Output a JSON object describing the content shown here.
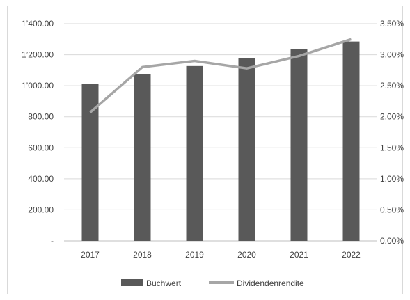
{
  "chart_data": {
    "type": "bar",
    "categories": [
      "2017",
      "2018",
      "2019",
      "2020",
      "2021",
      "2022"
    ],
    "series": [
      {
        "name": "Buchwert",
        "type": "bar",
        "axis": "left",
        "values": [
          1013,
          1074,
          1127,
          1179,
          1238,
          1285
        ],
        "color": "#595959"
      },
      {
        "name": "Dividendenrendite",
        "type": "line",
        "axis": "right",
        "values": [
          2.07,
          2.8,
          2.9,
          2.78,
          2.98,
          3.25
        ],
        "color": "#a6a6a6"
      }
    ],
    "y_left": {
      "range": [
        0,
        1400
      ],
      "ticks": [
        0,
        200,
        400,
        600,
        800,
        1000,
        1200,
        1400
      ],
      "tick_labels": [
        "-",
        "200.00",
        "400.00",
        "600.00",
        "800.00",
        "1’000.00",
        "1’200.00",
        "1’400.00"
      ]
    },
    "y_right": {
      "range": [
        0,
        3.5
      ],
      "ticks": [
        0,
        0.5,
        1.0,
        1.5,
        2.0,
        2.5,
        3.0,
        3.5
      ],
      "tick_labels": [
        "0.00%",
        "0.50%",
        "1.00%",
        "1.50%",
        "2.00%",
        "2.50%",
        "3.00%",
        "3.50%"
      ]
    },
    "grid": true,
    "legend": {
      "position": "bottom",
      "entries": [
        "Buchwert",
        "Dividendenrendite"
      ]
    },
    "title": "",
    "xlabel": "",
    "ylabel": ""
  }
}
